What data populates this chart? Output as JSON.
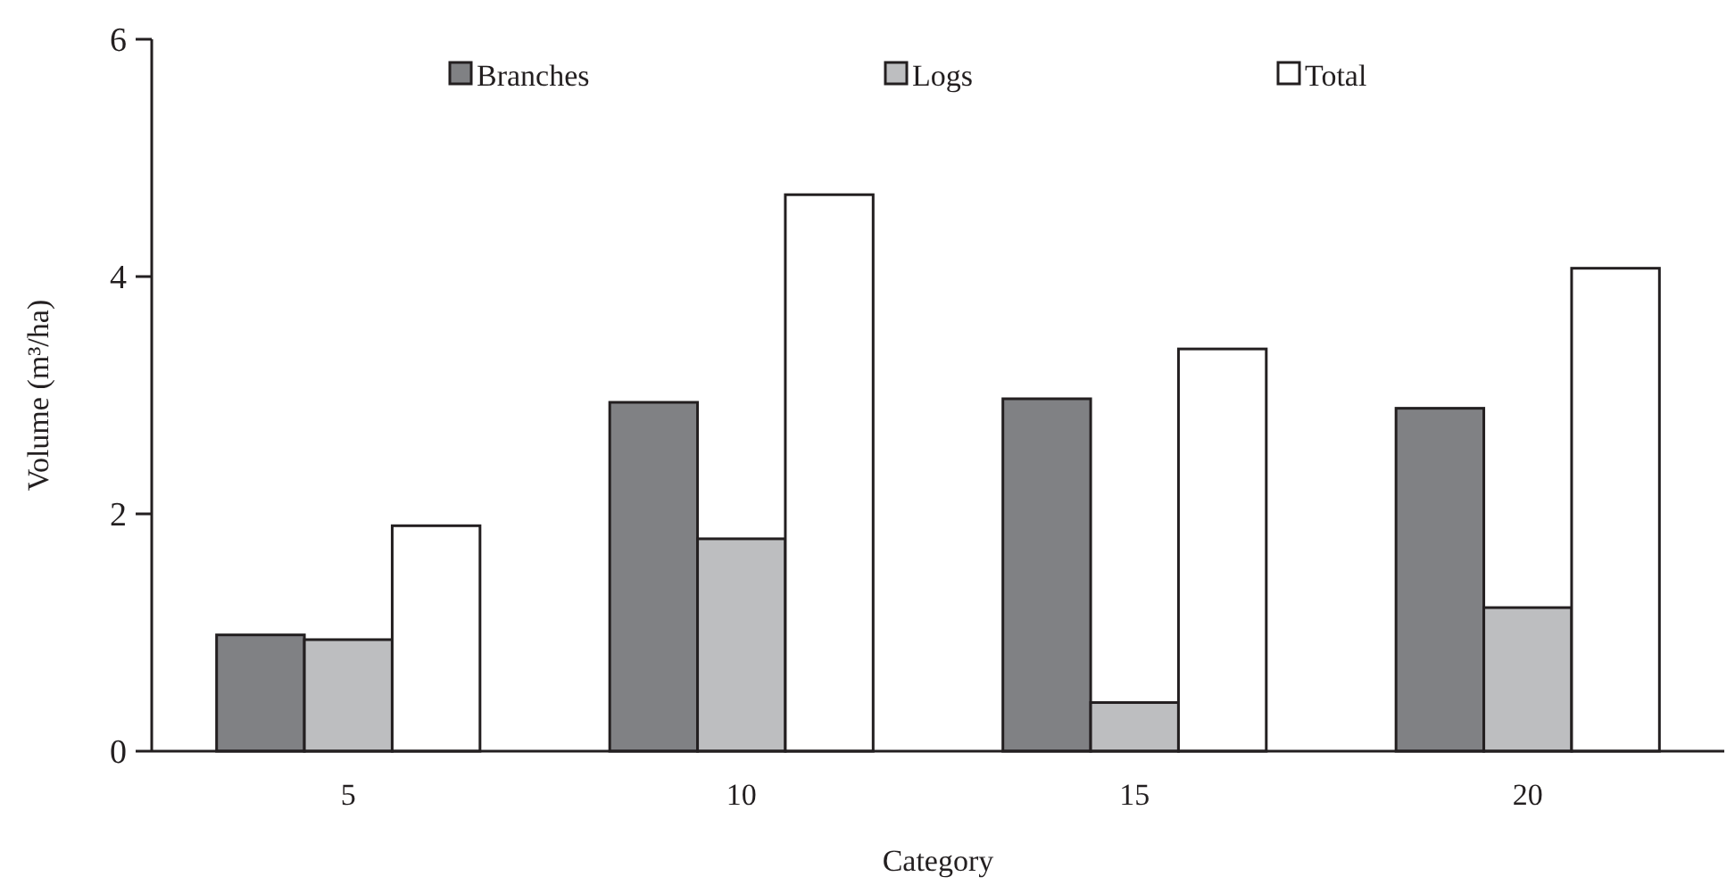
{
  "chart_data": {
    "type": "bar",
    "xlabel": "Category",
    "ylabel": "Volume (m³/ha)",
    "categories": [
      "5",
      "10",
      "15",
      "20"
    ],
    "series": [
      {
        "name": "Branches",
        "color": "#808184",
        "values": [
          0.98,
          2.94,
          2.97,
          2.89
        ]
      },
      {
        "name": "Logs",
        "color": "#bdbec0",
        "values": [
          0.94,
          1.79,
          0.41,
          1.21
        ]
      },
      {
        "name": "Total",
        "color": "#ffffff",
        "values": [
          1.9,
          4.69,
          3.39,
          4.07
        ]
      }
    ],
    "ylim": [
      0,
      6
    ],
    "yticks": [
      0,
      2,
      4,
      6
    ],
    "grid": false,
    "legend": "top"
  }
}
